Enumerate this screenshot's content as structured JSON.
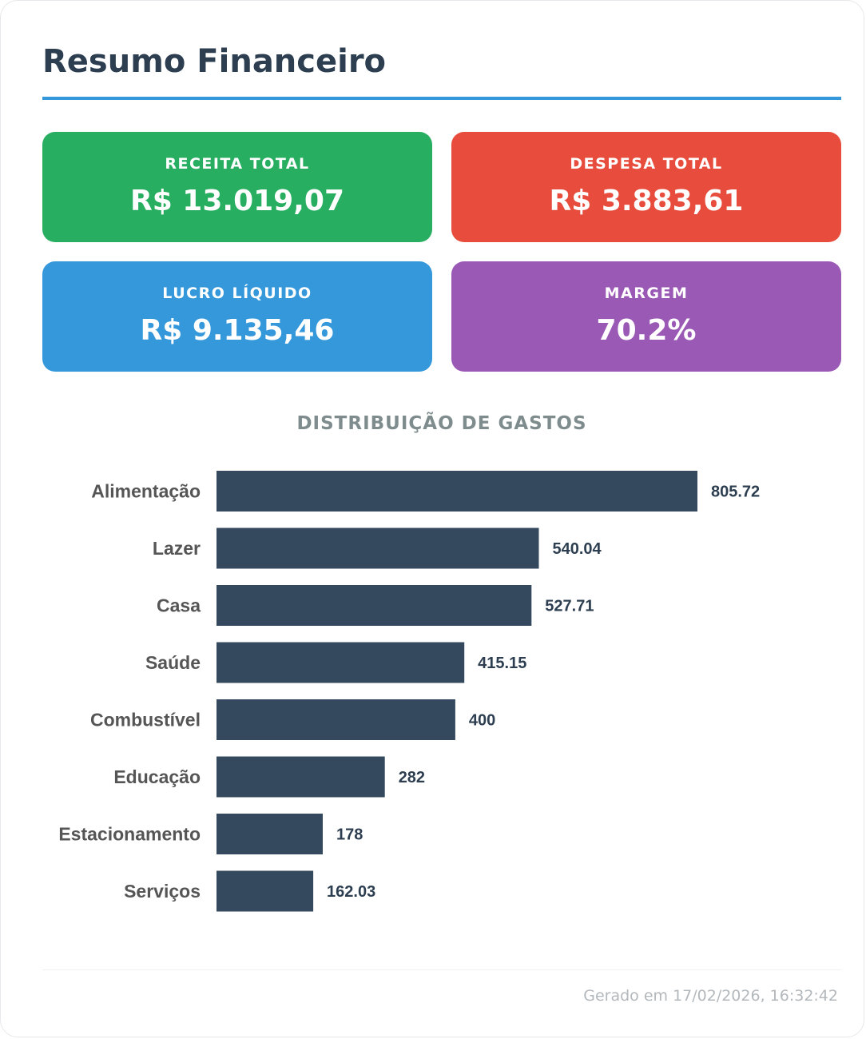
{
  "page": {
    "title": "Resumo Financeiro",
    "footer": "Gerado em 17/02/2026, 16:32:42"
  },
  "kpis": [
    {
      "label": "RECEITA TOTAL",
      "value": "R$ 13.019,07",
      "color": "#27ae60"
    },
    {
      "label": "DESPESA TOTAL",
      "value": "R$ 3.883,61",
      "color": "#e74c3c"
    },
    {
      "label": "LUCRO LÍQUIDO",
      "value": "R$ 9.135,46",
      "color": "#3498db"
    },
    {
      "label": "MARGEM",
      "value": "70.2%",
      "color": "#9b59b6"
    }
  ],
  "chart_data": {
    "type": "bar",
    "orientation": "horizontal",
    "title": "DISTRIBUIÇÃO DE GASTOS",
    "categories": [
      "Alimentação",
      "Lazer",
      "Casa",
      "Saúde",
      "Combustível",
      "Educação",
      "Estacionamento",
      "Serviços"
    ],
    "values": [
      805.72,
      540.04,
      527.71,
      415.15,
      400,
      282,
      178,
      162.03
    ],
    "value_labels": [
      "805.72",
      "540.04",
      "527.71",
      "415.15",
      "400",
      "282",
      "178",
      "162.03"
    ],
    "bar_color": "#34495e",
    "label_color": "#555555",
    "value_label_color": "#2c3e50",
    "xlim": [
      0,
      805.72
    ],
    "grid": false,
    "legend": "none"
  }
}
